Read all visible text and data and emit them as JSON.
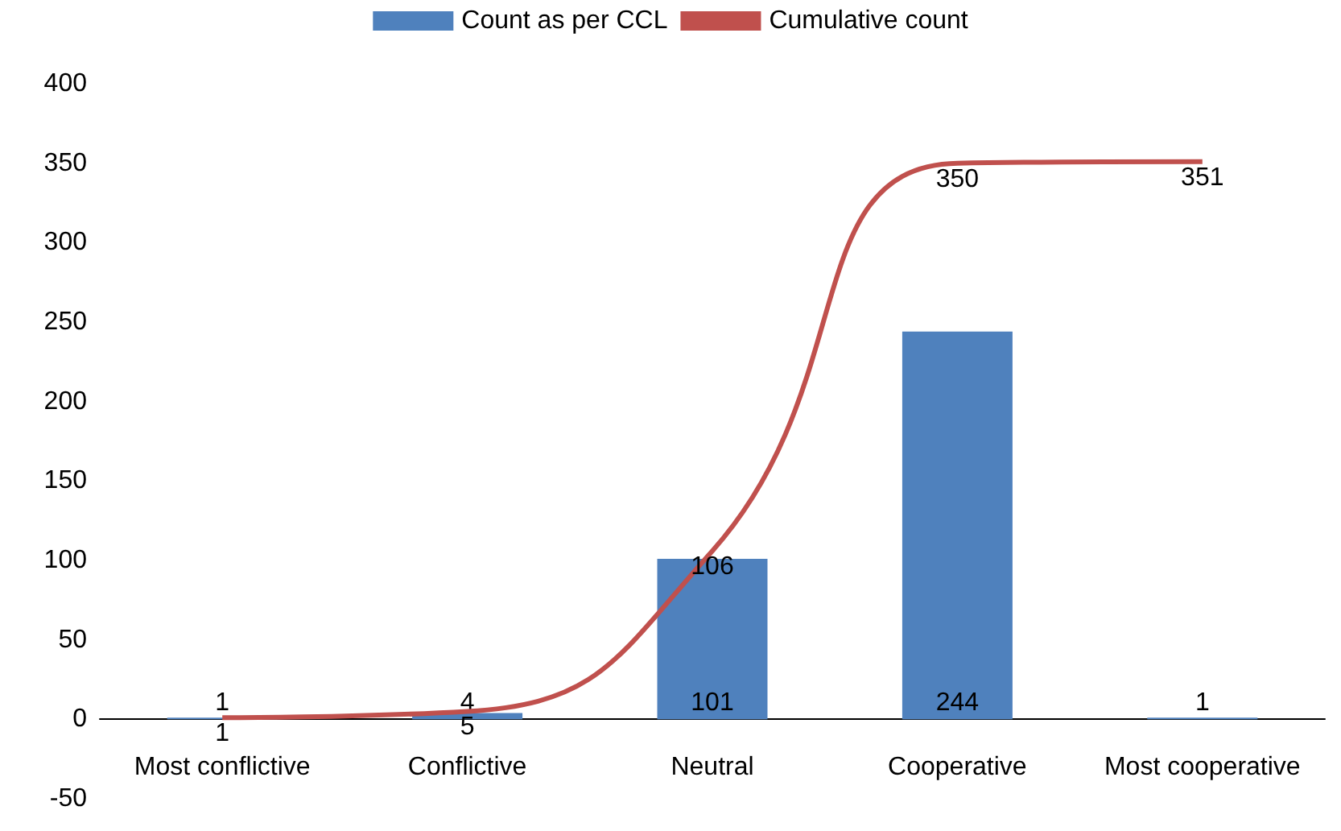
{
  "chart_data": {
    "type": "bar",
    "categories": [
      "Most conflictive",
      "Conflictive",
      "Neutral",
      "Cooperative",
      "Most cooperative"
    ],
    "series": [
      {
        "name": "Count as per CCL",
        "color": "#4f81bd",
        "values": [
          1,
          4,
          101,
          244,
          1
        ]
      },
      {
        "name": "Cumulative count",
        "type": "line",
        "color": "#c0504d",
        "values": [
          1,
          5,
          106,
          350,
          351
        ]
      }
    ],
    "ylim": [
      -50,
      400
    ],
    "yticks": [
      -50,
      0,
      50,
      100,
      150,
      200,
      250,
      300,
      350,
      400
    ],
    "grid": false,
    "legend": "top",
    "marker": "none",
    "line_style": "solid",
    "data_labels": true
  }
}
